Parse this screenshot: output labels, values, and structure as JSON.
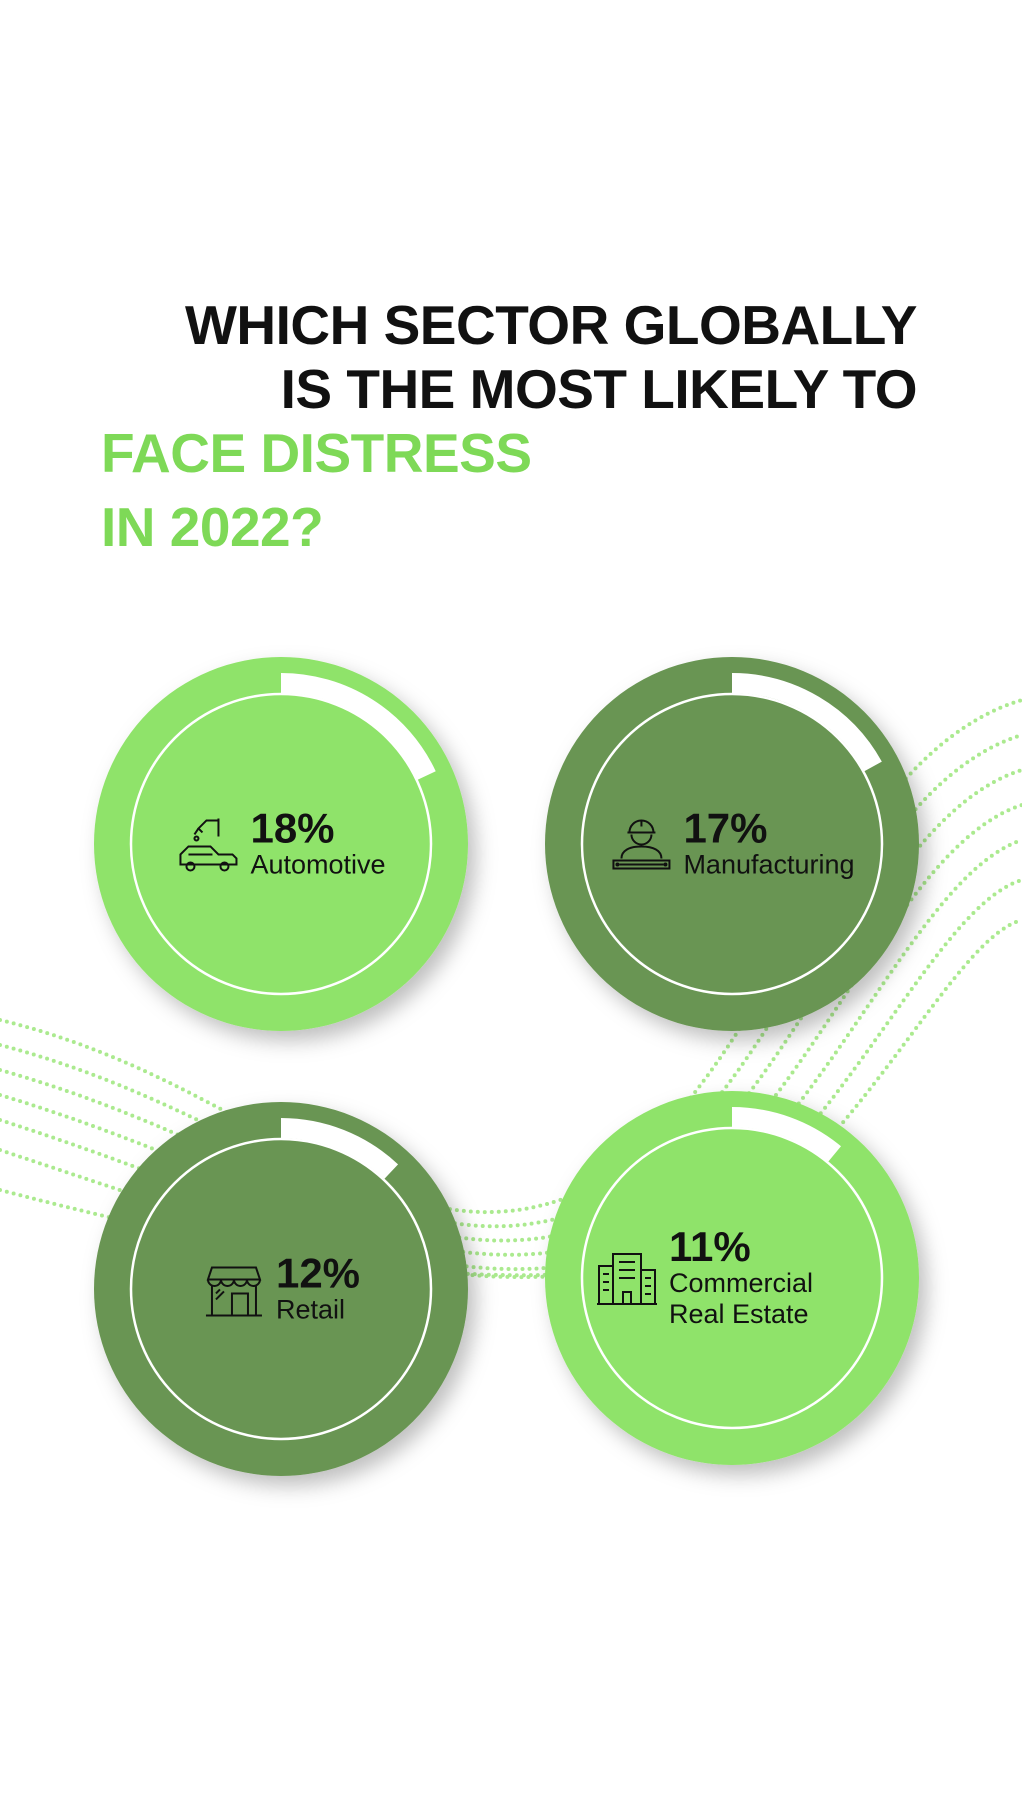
{
  "chart_data": {
    "type": "radial-progress",
    "title": [
      "WHICH SECTOR GLOBALLY",
      "IS THE MOST LIKELY TO"
    ],
    "subtitle": [
      "FACE DISTRESS",
      "IN 2022?"
    ],
    "categories": [
      "Automotive",
      "Manufacturing",
      "Retail",
      "Commercial Real Estate"
    ],
    "values": [
      18,
      17,
      12,
      11
    ],
    "value_labels": [
      "18%",
      "17%",
      "12%",
      "11%"
    ],
    "colors": [
      "#8fe36a",
      "#699552",
      "#699552",
      "#8fe36a"
    ],
    "ylim": [
      0,
      100
    ]
  }
}
